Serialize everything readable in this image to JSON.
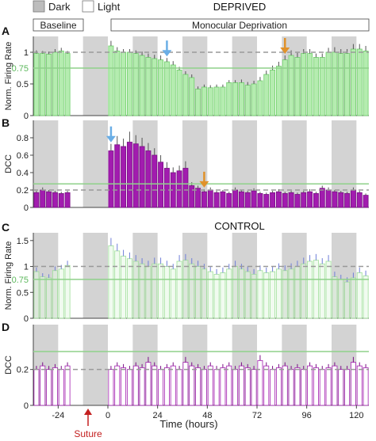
{
  "legend": {
    "dark_label": "Dark",
    "light_label": "Light"
  },
  "phase_labels": {
    "baseline": "Baseline",
    "deprivation": "Monocular Deprivation"
  },
  "colors": {
    "green_fill": "#b5ecb0",
    "green_stroke": "#6fcf6a",
    "magenta_fill": "#a21caf",
    "magenta_stroke": "#7a0e86",
    "dark_shade": "#d3d3d3",
    "ref_line": "#8fd18a",
    "dashed": "#999999",
    "blue_arrow": "#6aaee6",
    "orange_arrow": "#e0922b",
    "suture": "#c42020"
  },
  "x_axis": {
    "label": "Time (hours)",
    "ticks": [
      -24,
      0,
      24,
      48,
      72,
      96,
      120
    ],
    "range": [
      -36,
      126
    ],
    "dark_periods": [
      [
        -36,
        -24
      ],
      [
        -12,
        0
      ],
      [
        12,
        24
      ],
      [
        36,
        48
      ],
      [
        60,
        72
      ],
      [
        84,
        96
      ],
      [
        108,
        120
      ]
    ],
    "suture_label": "Suture",
    "suture_x": -12
  },
  "chart_data": [
    {
      "panel": "A",
      "title": "DEPRIVED",
      "type": "bar",
      "ylabel": "Norm. Firing Rate",
      "ylim": [
        0,
        1.25
      ],
      "y_ticks": [
        0,
        0.5,
        1
      ],
      "ref_line": 0.75,
      "ref_label": "0.75",
      "dashed_line": 1.0,
      "bar_style": "green",
      "x": [
        -36,
        -33,
        -30,
        -27,
        -24,
        -21,
        0,
        3,
        6,
        9,
        12,
        15,
        18,
        21,
        24,
        27,
        30,
        33,
        36,
        39,
        42,
        45,
        48,
        51,
        54,
        57,
        60,
        63,
        66,
        69,
        72,
        75,
        78,
        81,
        84,
        87,
        90,
        93,
        96,
        99,
        102,
        105,
        108,
        111,
        114,
        117,
        120,
        123
      ],
      "values": [
        0.98,
        0.98,
        0.97,
        1.0,
        1.02,
        0.98,
        1.1,
        1.02,
        1.0,
        1.0,
        0.98,
        0.95,
        0.92,
        0.9,
        0.88,
        0.85,
        0.8,
        0.72,
        0.65,
        0.6,
        0.42,
        0.45,
        0.44,
        0.45,
        0.45,
        0.52,
        0.52,
        0.52,
        0.48,
        0.5,
        0.55,
        0.65,
        0.72,
        0.78,
        0.88,
        0.95,
        0.92,
        0.98,
        0.98,
        0.92,
        0.92,
        1.0,
        1.0,
        0.98,
        0.98,
        1.05,
        1.05,
        1.02
      ],
      "errors": [
        0.05,
        0.04,
        0.04,
        0.05,
        0.05,
        0.04,
        0.08,
        0.06,
        0.05,
        0.05,
        0.05,
        0.06,
        0.06,
        0.06,
        0.07,
        0.06,
        0.06,
        0.05,
        0.05,
        0.05,
        0.04,
        0.04,
        0.04,
        0.04,
        0.04,
        0.04,
        0.04,
        0.05,
        0.05,
        0.05,
        0.06,
        0.06,
        0.07,
        0.07,
        0.07,
        0.08,
        0.07,
        0.07,
        0.07,
        0.06,
        0.06,
        0.07,
        0.08,
        0.07,
        0.07,
        0.08,
        0.08,
        0.08
      ],
      "arrows": [
        {
          "x": 27,
          "color": "blue"
        },
        {
          "x": 84,
          "color": "orange"
        }
      ]
    },
    {
      "panel": "B",
      "type": "bar",
      "ylabel": "DCC",
      "ylim": [
        0,
        1.0
      ],
      "y_ticks": [
        0,
        0.2,
        0.4,
        0.6,
        0.8
      ],
      "ref_line": 0.27,
      "dashed_line": 0.2,
      "bar_style": "magenta",
      "x": [
        -36,
        -33,
        -30,
        -27,
        -24,
        -21,
        0,
        3,
        6,
        9,
        12,
        15,
        18,
        21,
        24,
        27,
        30,
        33,
        36,
        39,
        42,
        45,
        48,
        51,
        54,
        57,
        60,
        63,
        66,
        69,
        72,
        75,
        78,
        81,
        84,
        87,
        90,
        93,
        96,
        99,
        102,
        105,
        108,
        111,
        114,
        117,
        120,
        123
      ],
      "values": [
        0.17,
        0.2,
        0.18,
        0.17,
        0.16,
        0.17,
        0.65,
        0.72,
        0.7,
        0.75,
        0.73,
        0.7,
        0.65,
        0.6,
        0.52,
        0.45,
        0.4,
        0.42,
        0.45,
        0.25,
        0.22,
        0.18,
        0.2,
        0.17,
        0.18,
        0.16,
        0.2,
        0.18,
        0.17,
        0.19,
        0.16,
        0.15,
        0.17,
        0.18,
        0.16,
        0.17,
        0.15,
        0.17,
        0.18,
        0.16,
        0.22,
        0.2,
        0.18,
        0.17,
        0.16,
        0.2,
        0.17,
        0.14
      ],
      "errors": [
        0.02,
        0.03,
        0.02,
        0.02,
        0.02,
        0.02,
        0.08,
        0.1,
        0.09,
        0.12,
        0.1,
        0.1,
        0.09,
        0.08,
        0.08,
        0.07,
        0.06,
        0.06,
        0.08,
        0.04,
        0.03,
        0.03,
        0.03,
        0.02,
        0.02,
        0.02,
        0.03,
        0.02,
        0.02,
        0.03,
        0.02,
        0.02,
        0.02,
        0.03,
        0.02,
        0.02,
        0.02,
        0.02,
        0.03,
        0.02,
        0.03,
        0.03,
        0.02,
        0.02,
        0.02,
        0.03,
        0.02,
        0.02
      ],
      "arrows": [
        {
          "x": 0,
          "color": "blue"
        },
        {
          "x": 45,
          "color": "orange"
        }
      ]
    },
    {
      "panel": "C",
      "title": "CONTROL",
      "type": "bar",
      "ylabel": "Norm. Firing Rate",
      "ylim": [
        0,
        1.65
      ],
      "y_ticks": [
        0,
        0.5,
        1,
        1.5
      ],
      "ref_line": 0.75,
      "ref_label": "0.75",
      "dashed_line": 1.0,
      "bar_style": "green_open",
      "x": [
        -36,
        -33,
        -30,
        -27,
        -24,
        -21,
        0,
        3,
        6,
        9,
        12,
        15,
        18,
        21,
        24,
        27,
        30,
        33,
        36,
        39,
        42,
        45,
        48,
        51,
        54,
        57,
        60,
        63,
        66,
        69,
        72,
        75,
        78,
        81,
        84,
        87,
        90,
        93,
        96,
        99,
        102,
        105,
        108,
        111,
        114,
        117,
        120,
        123
      ],
      "values": [
        0.9,
        0.8,
        0.78,
        0.92,
        0.95,
        1.02,
        1.4,
        1.3,
        1.2,
        1.15,
        1.1,
        1.05,
        1.0,
        1.05,
        1.05,
        1.0,
        0.95,
        1.1,
        1.12,
        1.05,
        1.0,
        0.95,
        0.9,
        0.85,
        0.88,
        0.95,
        1.0,
        0.95,
        0.9,
        0.85,
        0.92,
        0.88,
        0.9,
        0.95,
        0.92,
        0.95,
        1.0,
        1.05,
        1.1,
        1.12,
        1.05,
        1.1,
        0.8,
        0.75,
        0.7,
        0.78,
        0.88,
        0.82
      ],
      "errors": [
        0.08,
        0.07,
        0.07,
        0.08,
        0.08,
        0.09,
        0.15,
        0.14,
        0.12,
        0.12,
        0.12,
        0.11,
        0.11,
        0.12,
        0.12,
        0.11,
        0.1,
        0.12,
        0.12,
        0.11,
        0.11,
        0.1,
        0.1,
        0.1,
        0.1,
        0.1,
        0.11,
        0.1,
        0.1,
        0.1,
        0.1,
        0.1,
        0.1,
        0.11,
        0.1,
        0.11,
        0.11,
        0.12,
        0.12,
        0.12,
        0.11,
        0.12,
        0.1,
        0.09,
        0.09,
        0.1,
        0.1,
        0.1
      ],
      "arrows": []
    },
    {
      "panel": "D",
      "type": "bar",
      "ylabel": "DCC",
      "ylim": [
        0,
        0.45
      ],
      "y_ticks": [
        0,
        0.2
      ],
      "ref_line": 0.3,
      "dashed_line": 0.2,
      "bar_style": "magenta_open",
      "x": [
        -36,
        -33,
        -30,
        -27,
        -24,
        -21,
        0,
        3,
        6,
        9,
        12,
        15,
        18,
        21,
        24,
        27,
        30,
        33,
        36,
        39,
        42,
        45,
        48,
        51,
        54,
        57,
        60,
        63,
        66,
        69,
        72,
        75,
        78,
        81,
        84,
        87,
        90,
        93,
        96,
        99,
        102,
        105,
        108,
        111,
        114,
        117,
        120,
        123
      ],
      "values": [
        0.2,
        0.22,
        0.2,
        0.21,
        0.2,
        0.22,
        0.2,
        0.22,
        0.21,
        0.2,
        0.22,
        0.21,
        0.24,
        0.22,
        0.2,
        0.21,
        0.22,
        0.2,
        0.24,
        0.22,
        0.21,
        0.2,
        0.22,
        0.2,
        0.21,
        0.22,
        0.2,
        0.22,
        0.21,
        0.2,
        0.25,
        0.22,
        0.2,
        0.21,
        0.22,
        0.2,
        0.21,
        0.2,
        0.22,
        0.21,
        0.2,
        0.21,
        0.22,
        0.2,
        0.2,
        0.24,
        0.22,
        0.21
      ],
      "errors": [
        0.02,
        0.02,
        0.02,
        0.02,
        0.02,
        0.02,
        0.02,
        0.02,
        0.02,
        0.02,
        0.02,
        0.02,
        0.03,
        0.02,
        0.02,
        0.02,
        0.02,
        0.02,
        0.03,
        0.02,
        0.02,
        0.02,
        0.02,
        0.02,
        0.02,
        0.02,
        0.02,
        0.02,
        0.02,
        0.02,
        0.03,
        0.02,
        0.02,
        0.02,
        0.02,
        0.02,
        0.02,
        0.02,
        0.02,
        0.02,
        0.02,
        0.02,
        0.02,
        0.02,
        0.02,
        0.03,
        0.02,
        0.02
      ],
      "arrows": []
    }
  ]
}
